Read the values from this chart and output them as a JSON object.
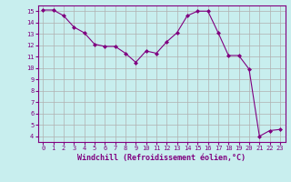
{
  "x": [
    0,
    1,
    2,
    3,
    4,
    5,
    6,
    7,
    8,
    9,
    10,
    11,
    12,
    13,
    14,
    15,
    16,
    17,
    18,
    19,
    20,
    21,
    22,
    23
  ],
  "y": [
    15.1,
    15.1,
    14.6,
    13.6,
    13.1,
    12.1,
    11.9,
    11.9,
    11.3,
    10.5,
    11.5,
    11.3,
    12.3,
    13.1,
    14.6,
    15.0,
    15.0,
    13.1,
    11.1,
    11.1,
    9.9,
    4.0,
    4.5,
    4.6
  ],
  "line_color": "#800080",
  "marker": "D",
  "marker_size": 2,
  "bg_color": "#c8eeee",
  "grid_color": "#b0b0b0",
  "xlabel": "Windchill (Refroidissement éolien,°C)",
  "xlabel_color": "#800080",
  "xlim": [
    -0.5,
    23.5
  ],
  "ylim": [
    3.5,
    15.5
  ],
  "yticks": [
    4,
    5,
    6,
    7,
    8,
    9,
    10,
    11,
    12,
    13,
    14,
    15
  ],
  "xticks": [
    0,
    1,
    2,
    3,
    4,
    5,
    6,
    7,
    8,
    9,
    10,
    11,
    12,
    13,
    14,
    15,
    16,
    17,
    18,
    19,
    20,
    21,
    22,
    23
  ],
  "tick_color": "#800080",
  "spine_color": "#800080",
  "tick_fontsize": 5.0,
  "xlabel_fontsize": 6.0
}
